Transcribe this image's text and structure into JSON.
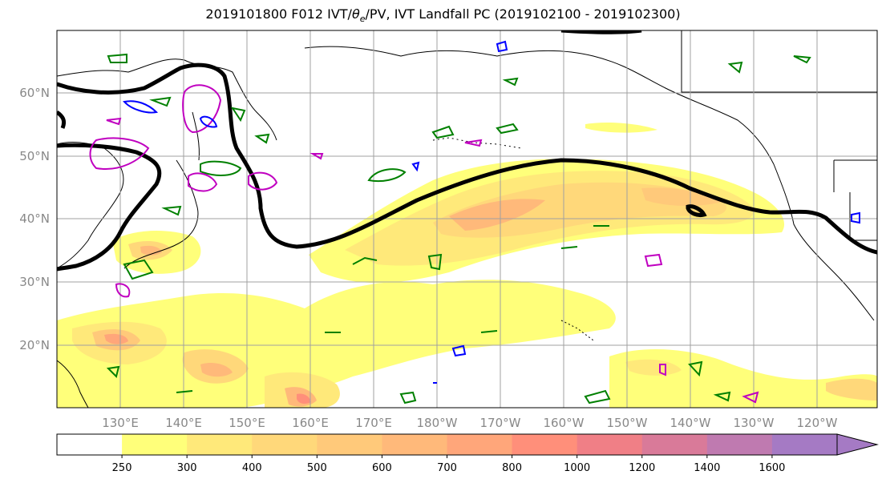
{
  "title_prefix": "2019101800 F012 IVT/",
  "title_theta": "θ",
  "title_theta_sub": "e",
  "title_suffix": "/PV, IVT Landfall PC (2019102100 - 2019102300)",
  "lat_ticks": [
    "60°N",
    "50°N",
    "40°N",
    "30°N",
    "20°N"
  ],
  "lon_ticks": [
    "130°E",
    "140°E",
    "150°E",
    "160°E",
    "170°E",
    "180°W",
    "170°W",
    "160°W",
    "150°W",
    "140°W",
    "130°W",
    "120°W"
  ],
  "colorbar": {
    "levels": [
      "250",
      "300",
      "400",
      "500",
      "600",
      "700",
      "800",
      "1000",
      "1200",
      "1400",
      "1600"
    ],
    "colors": [
      "#ffff7a",
      "#ffe97a",
      "#ffd87a",
      "#ffc97a",
      "#ffb97a",
      "#ffa67a",
      "#ff8f7a",
      "#f07f86",
      "#d97a99",
      "#bf7ab0",
      "#a57ac4"
    ],
    "extend": "max"
  },
  "colors": {
    "contour_pv": "#000000",
    "contour_theta": "#008000",
    "contour_ivt_a": "#c000c0",
    "contour_ivt_b": "#0000ff",
    "grid": "#a0a0a0"
  }
}
